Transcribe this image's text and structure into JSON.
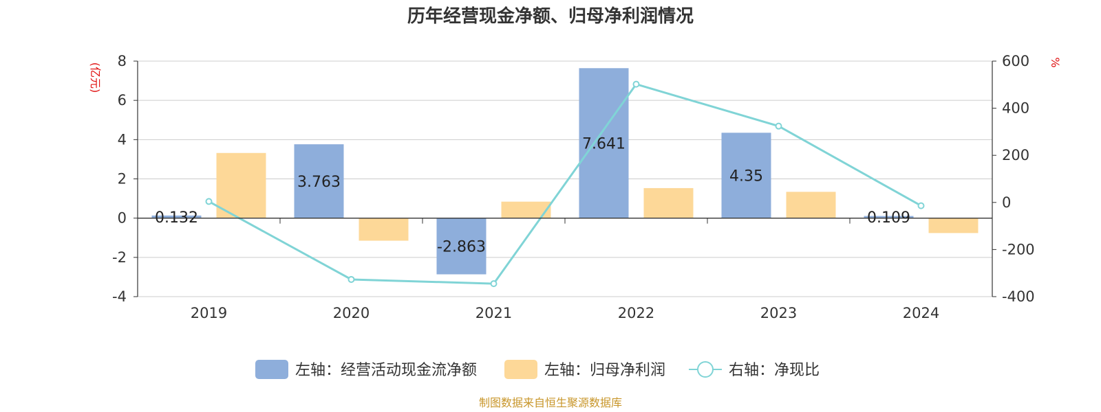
{
  "chart_data": {
    "type": "bar",
    "title": "历年经营现金净额、归母净利润情况",
    "categories": [
      "2019",
      "2020",
      "2021",
      "2022",
      "2023",
      "2024"
    ],
    "left_axis": {
      "label": "(亿元)",
      "ylim": [
        -4,
        8
      ],
      "ticks": [
        "8",
        "6",
        "4",
        "2",
        "0",
        "-2",
        "-4"
      ]
    },
    "right_axis": {
      "label": "%",
      "ylim": [
        -400,
        600
      ],
      "ticks": [
        "600",
        "400",
        "200",
        "0",
        "-200",
        "-400"
      ]
    },
    "series": [
      {
        "name": "左轴：经营活动现金流净额",
        "type": "bar",
        "axis": "left",
        "color": "#8eaedb",
        "values": [
          0.132,
          3.763,
          -2.863,
          7.641,
          4.35,
          0.109
        ],
        "labels": [
          "0.132",
          "3.763",
          "-2.863",
          "7.641",
          "4.35",
          "0.109"
        ]
      },
      {
        "name": "左轴：归母净利润",
        "type": "bar",
        "axis": "left",
        "color": "#fdd898",
        "values": [
          3.32,
          -1.15,
          0.84,
          1.53,
          1.34,
          -0.76
        ]
      },
      {
        "name": "右轴：净现比",
        "type": "line",
        "axis": "right",
        "color": "#80d4d6",
        "values": [
          4,
          -327,
          -345,
          502,
          324,
          -14
        ]
      }
    ],
    "grid": true,
    "legend_position": "bottom"
  },
  "footer": {
    "source": "制图数据来自恒生聚源数据库"
  }
}
